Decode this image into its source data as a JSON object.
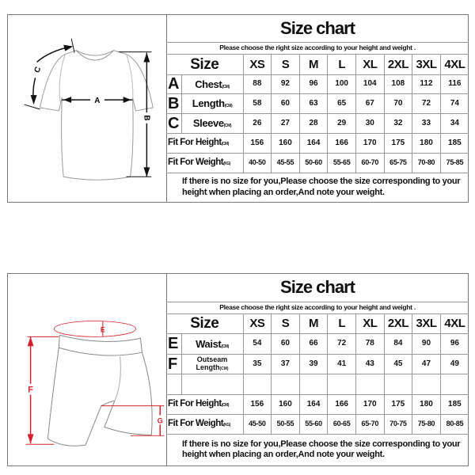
{
  "top": {
    "title": "Size chart",
    "subtitle": "Please choose the right size according to your height and weight .",
    "size_label": "Size",
    "sizes": [
      "XS",
      "S",
      "M",
      "L",
      "XL",
      "2XL",
      "3XL",
      "4XL"
    ],
    "rows": [
      {
        "letter": "A",
        "label": "Chest",
        "unit": "(CM)",
        "values": [
          "88",
          "92",
          "96",
          "100",
          "104",
          "108",
          "112",
          "116"
        ]
      },
      {
        "letter": "B",
        "label": "Length",
        "unit": "(CM)",
        "values": [
          "58",
          "60",
          "63",
          "65",
          "67",
          "70",
          "72",
          "74"
        ]
      },
      {
        "letter": "C",
        "label": "Sleeve",
        "unit": "(CM)",
        "values": [
          "26",
          "27",
          "28",
          "29",
          "30",
          "32",
          "33",
          "34"
        ]
      }
    ],
    "height": {
      "label": "Fit For Height",
      "unit": "(CM)",
      "values": [
        "156",
        "160",
        "164",
        "166",
        "170",
        "175",
        "180",
        "185"
      ]
    },
    "weight": {
      "label": "Fit For Weight",
      "unit": "(KG)",
      "values": [
        "40-50",
        "45-55",
        "50-60",
        "55-65",
        "60-70",
        "65-75",
        "70-80",
        "75-85"
      ]
    },
    "note": "If there is no size for you,Please choose the size corresponding to your height when placing an order,And note your weight.",
    "diagram_labels": {
      "a": "A",
      "b": "B",
      "c": "C"
    }
  },
  "bottom": {
    "title": "Size chart",
    "subtitle": "Please choose the right size according to your height and weight .",
    "size_label": "Size",
    "sizes": [
      "XS",
      "S",
      "M",
      "L",
      "XL",
      "2XL",
      "3XL",
      "4XL"
    ],
    "rows": [
      {
        "letter": "E",
        "label": "Waist",
        "unit": "(CM)",
        "values": [
          "54",
          "60",
          "66",
          "72",
          "78",
          "84",
          "90",
          "96"
        ]
      },
      {
        "letter": "F",
        "label": "Outseam",
        "label2": "Length",
        "unit": "(CM)",
        "values": [
          "35",
          "37",
          "39",
          "41",
          "43",
          "45",
          "47",
          "49"
        ]
      }
    ],
    "height": {
      "label": "Fit For Height",
      "unit": "(CM)",
      "values": [
        "156",
        "160",
        "164",
        "166",
        "170",
        "175",
        "180",
        "185"
      ]
    },
    "weight": {
      "label": "Fit For Weight",
      "unit": "(KG)",
      "values": [
        "45-50",
        "50-55",
        "55-60",
        "60-65",
        "65-70",
        "70-75",
        "75-80",
        "80-85"
      ]
    },
    "note": "If there is no size for you,Please choose the size corresponding to your height when placing an order,And note your weight.",
    "diagram_labels": {
      "e": "E",
      "f": "F",
      "g": "G"
    },
    "accent_color": "#d4202a"
  }
}
